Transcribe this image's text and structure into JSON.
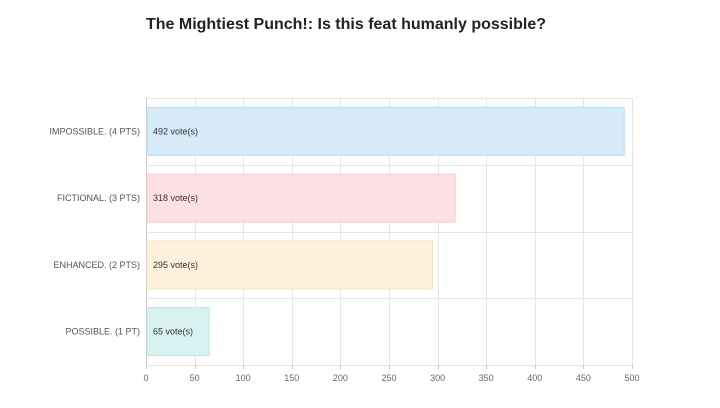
{
  "chart_data": {
    "type": "bar",
    "orientation": "horizontal",
    "title": "The Mightiest Punch!: Is this feat humanly possible?",
    "categories": [
      "IMPOSSIBLE. (4 PTS)",
      "FICTIONAL. (3 PTS)",
      "ENHANCED. (2 PTS)",
      "POSSIBLE. (1 PT)"
    ],
    "values": [
      492,
      318,
      295,
      65
    ],
    "bar_labels": [
      "492 vote(s)",
      "318 vote(s)",
      "295 vote(s)",
      "65 vote(s)"
    ],
    "xticks": [
      0,
      50,
      100,
      150,
      200,
      250,
      300,
      350,
      400,
      450,
      500
    ],
    "xlim": [
      0,
      500
    ],
    "grid": true,
    "xlabel": "",
    "ylabel": "",
    "colors": {
      "fill": [
        "#d6eaf8",
        "#fde0e4",
        "#fdf1dc",
        "#d9f1f1"
      ],
      "stroke": [
        "#b9dcf5",
        "#fac7cf",
        "#fbe3b8",
        "#bde6e6"
      ],
      "grid": "#e6e6e6"
    }
  }
}
